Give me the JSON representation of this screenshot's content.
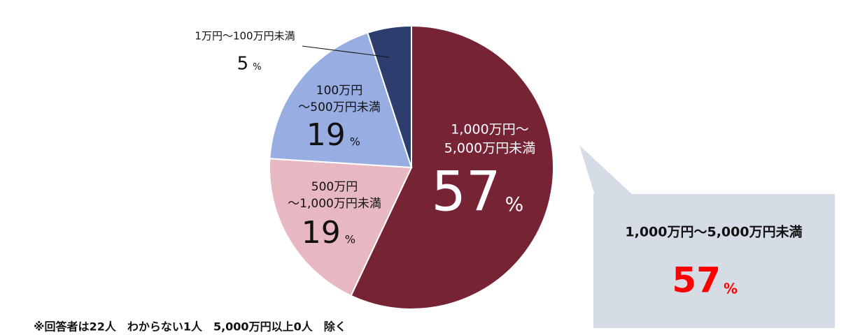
{
  "chart_data": {
    "type": "pie",
    "categories": [
      [
        "1,000万円～",
        "5,000万円未満"
      ],
      [
        "500万円",
        "～1,000万円未満"
      ],
      [
        "100万円",
        "～500万円未満"
      ],
      [
        "1万円～100万円未満"
      ]
    ],
    "values": [
      57,
      19,
      19,
      5
    ],
    "unit": "%",
    "colors": [
      "#772336",
      "#e7b8c1",
      "#98aee3",
      "#2d3e6e"
    ],
    "callout": {
      "label": "1,000万円～5,000万円未満"
    },
    "footnote": "※回答者は22人　わからない1人　5,000万円以上0人　除く"
  }
}
